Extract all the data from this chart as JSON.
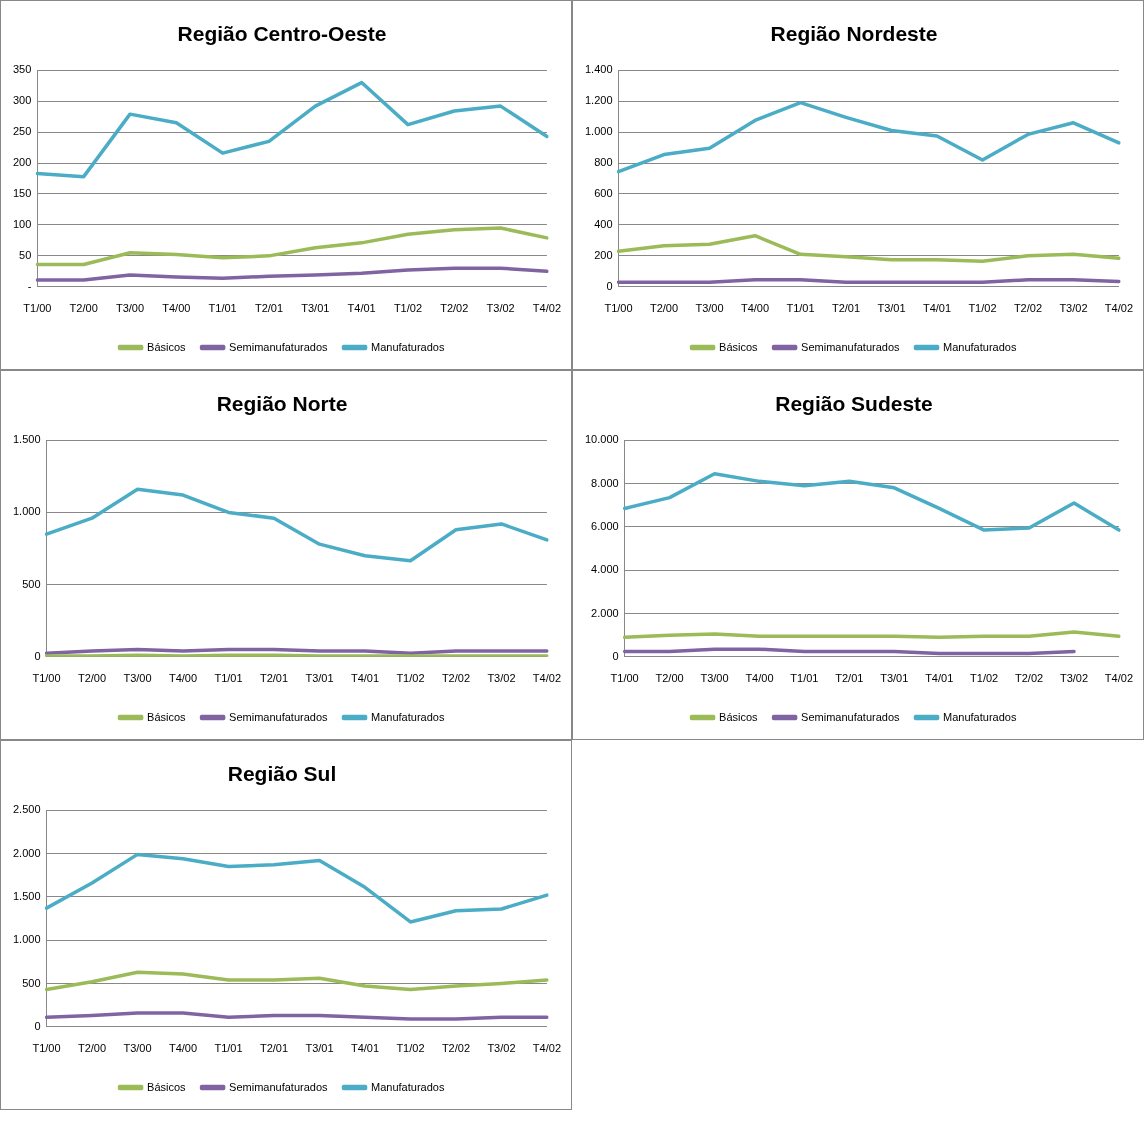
{
  "chart_data": [
    {
      "type": "line",
      "title": "Região Centro-Oeste",
      "categories": [
        "T1/00",
        "T2/00",
        "T3/00",
        "T4/00",
        "T1/01",
        "T2/01",
        "T3/01",
        "T4/01",
        "T1/02",
        "T2/02",
        "T3/02",
        "T4/02"
      ],
      "series": [
        {
          "name": "Básicos",
          "color": "#9bbb59",
          "values": [
            36,
            36,
            55,
            52,
            47,
            50,
            63,
            71,
            85,
            92,
            95,
            79
          ]
        },
        {
          "name": "Semimanufaturados",
          "color": "#8064a2",
          "values": [
            11,
            11,
            19,
            16,
            14,
            17,
            19,
            22,
            27,
            30,
            30,
            25
          ]
        },
        {
          "name": "Manufaturados",
          "color": "#4bacc6",
          "values": [
            183,
            178,
            279,
            265,
            216,
            235,
            292,
            330,
            262,
            284,
            292,
            243
          ]
        }
      ],
      "ylim": [
        0,
        350
      ],
      "yticks": [
        {
          "value": 0,
          "label": "-"
        },
        50,
        100,
        150,
        200,
        250,
        300,
        350
      ],
      "grid": "y",
      "legend": "bottom",
      "marker": "none"
    },
    {
      "type": "line",
      "title": "Região Nordeste",
      "categories": [
        "T1/00",
        "T2/00",
        "T3/00",
        "T4/00",
        "T1/01",
        "T2/01",
        "T3/01",
        "T4/01",
        "T1/02",
        "T2/02",
        "T3/02",
        "T4/02"
      ],
      "series": [
        {
          "name": "Básicos",
          "color": "#9bbb59",
          "values": [
            230,
            265,
            275,
            330,
            210,
            195,
            175,
            175,
            165,
            200,
            210,
            185
          ]
        },
        {
          "name": "Semimanufaturados",
          "color": "#8064a2",
          "values": [
            30,
            30,
            30,
            45,
            45,
            30,
            30,
            30,
            30,
            45,
            45,
            35
          ]
        },
        {
          "name": "Manufaturados",
          "color": "#4bacc6",
          "values": [
            745,
            855,
            895,
            1075,
            1190,
            1095,
            1010,
            975,
            820,
            985,
            1060,
            930
          ]
        }
      ],
      "ylim": [
        0,
        1400
      ],
      "yticks": [
        0,
        200,
        400,
        600,
        800,
        {
          "value": 1000,
          "label": "1.000"
        },
        {
          "value": 1200,
          "label": "1.200"
        },
        {
          "value": 1400,
          "label": "1.400"
        }
      ],
      "grid": "y",
      "legend": "bottom",
      "marker": "none"
    },
    {
      "type": "line",
      "title": "Região Norte",
      "categories": [
        "T1/00",
        "T2/00",
        "T3/00",
        "T4/00",
        "T1/01",
        "T2/01",
        "T3/01",
        "T4/01",
        "T1/02",
        "T2/02",
        "T3/02",
        "T4/02"
      ],
      "series": [
        {
          "name": "Básicos",
          "color": "#9bbb59",
          "values": [
            5,
            5,
            10,
            5,
            10,
            10,
            5,
            5,
            5,
            5,
            5,
            5
          ]
        },
        {
          "name": "Semimanufaturados",
          "color": "#8064a2",
          "values": [
            25,
            40,
            50,
            40,
            50,
            50,
            40,
            40,
            25,
            40,
            40,
            40
          ]
        },
        {
          "name": "Manufaturados",
          "color": "#4bacc6",
          "values": [
            850,
            960,
            1160,
            1120,
            1000,
            960,
            780,
            700,
            665,
            880,
            920,
            810
          ]
        }
      ],
      "ylim": [
        0,
        1500
      ],
      "yticks": [
        0,
        500,
        {
          "value": 1000,
          "label": "1.000"
        },
        {
          "value": 1500,
          "label": "1.500"
        }
      ],
      "grid": "y",
      "legend": "bottom",
      "marker": "none"
    },
    {
      "type": "line",
      "title": "Região Sudeste",
      "categories": [
        "T1/00",
        "T2/00",
        "T3/00",
        "T4/00",
        "T1/01",
        "T2/01",
        "T3/01",
        "T4/01",
        "T1/02",
        "T2/02",
        "T3/02",
        "T4/02"
      ],
      "series": [
        {
          "name": "Básicos",
          "color": "#9bbb59",
          "values": [
            900,
            1000,
            1050,
            950,
            950,
            950,
            950,
            900,
            950,
            950,
            1150,
            950
          ]
        },
        {
          "name": "Semimanufaturados",
          "color": "#8064a2",
          "values": [
            250,
            250,
            350,
            350,
            250,
            250,
            250,
            150,
            150,
            150,
            250,
            null
          ]
        },
        {
          "name": "Manufaturados",
          "color": "#4bacc6",
          "values": [
            6850,
            7350,
            8450,
            8100,
            7900,
            8100,
            7800,
            6850,
            5850,
            5950,
            7100,
            5850
          ]
        }
      ],
      "ylim": [
        0,
        10000
      ],
      "yticks": [
        0,
        {
          "value": 2000,
          "label": "2.000"
        },
        {
          "value": 4000,
          "label": "4.000"
        },
        {
          "value": 6000,
          "label": "6.000"
        },
        {
          "value": 8000,
          "label": "8.000"
        },
        {
          "value": 10000,
          "label": "10.000"
        }
      ],
      "grid": "y",
      "legend": "bottom",
      "marker": "none"
    },
    {
      "type": "line",
      "title": "Região Sul",
      "categories": [
        "T1/00",
        "T2/00",
        "T3/00",
        "T4/00",
        "T1/01",
        "T2/01",
        "T3/01",
        "T4/01",
        "T1/02",
        "T2/02",
        "T3/02",
        "T4/02"
      ],
      "series": [
        {
          "name": "Básicos",
          "color": "#9bbb59",
          "values": [
            430,
            520,
            630,
            610,
            540,
            540,
            560,
            470,
            430,
            470,
            500,
            540
          ]
        },
        {
          "name": "Semimanufaturados",
          "color": "#8064a2",
          "values": [
            110,
            130,
            160,
            160,
            110,
            130,
            130,
            110,
            90,
            90,
            110,
            110
          ]
        },
        {
          "name": "Manufaturados",
          "color": "#4bacc6",
          "values": [
            1370,
            1660,
            1990,
            1940,
            1850,
            1870,
            1920,
            1610,
            1210,
            1340,
            1360,
            1520
          ]
        }
      ],
      "ylim": [
        0,
        2500
      ],
      "yticks": [
        0,
        500,
        {
          "value": 1000,
          "label": "1.000"
        },
        {
          "value": 1500,
          "label": "1.500"
        },
        {
          "value": 2000,
          "label": "2.000"
        },
        {
          "value": 2500,
          "label": "2.500"
        }
      ],
      "grid": "y",
      "legend": "bottom",
      "marker": "none"
    }
  ]
}
